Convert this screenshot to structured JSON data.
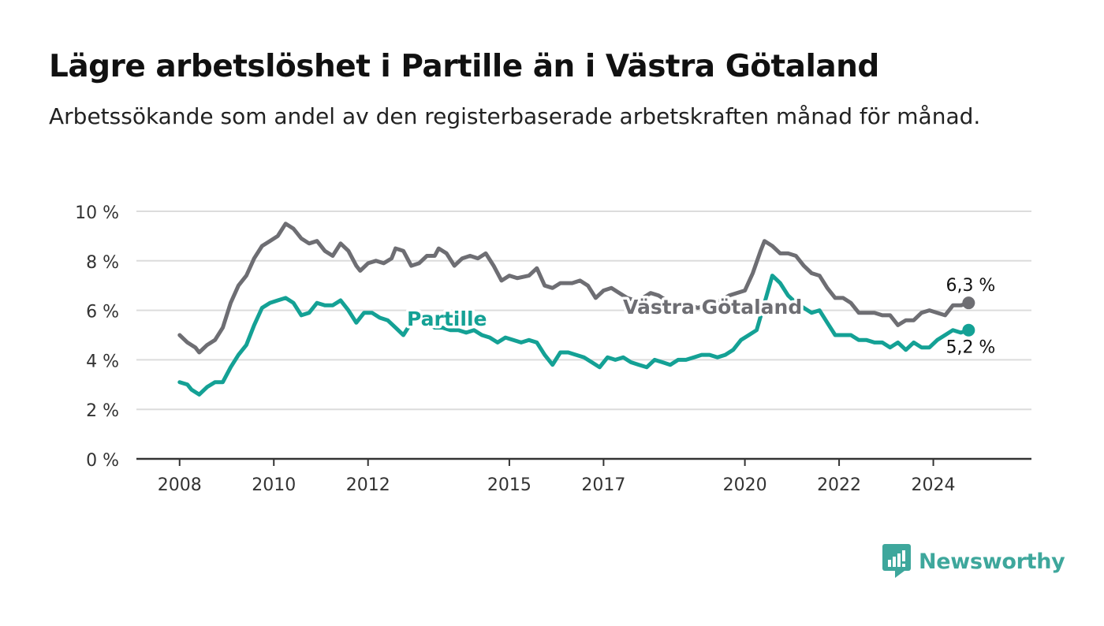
{
  "title": "Lägre arbetslöshet i Partille än i Västra Götaland",
  "subtitle": "Arbetssökande som andel av den registerbaserade arbetskraften månad för månad.",
  "brand": {
    "name": "Newsworthy",
    "color": "#3ea79c",
    "icon": "bar-chart-speech-bubble-icon"
  },
  "chart_data": {
    "type": "line",
    "title": "Lägre arbetslöshet i Partille än i Västra Götaland",
    "subtitle": "Arbetssökande som andel av den registerbaserade arbetskraften månad för månad.",
    "xlabel": "",
    "ylabel": "",
    "ylim": [
      0,
      10
    ],
    "xlim": [
      "2007-02",
      "2026-02"
    ],
    "y_ticks": [
      "0 %",
      "2 %",
      "4 %",
      "6 %",
      "8 %",
      "10 %"
    ],
    "x_ticks": [
      "2008",
      "2010",
      "2012",
      "2015",
      "2017",
      "2020",
      "2022",
      "2024"
    ],
    "x_tick_dates": [
      "2008-01",
      "2010-01",
      "2012-01",
      "2015-01",
      "2017-01",
      "2020-01",
      "2022-01",
      "2024-01"
    ],
    "grid": true,
    "legend": "inline labels",
    "series": [
      {
        "name": "Västra Götaland",
        "color": "#6e6e73",
        "end_label": "6,3 %",
        "points": [
          [
            "2008-01",
            5.0
          ],
          [
            "2008-03",
            4.7
          ],
          [
            "2008-05",
            4.5
          ],
          [
            "2008-06",
            4.3
          ],
          [
            "2008-08",
            4.6
          ],
          [
            "2008-10",
            4.8
          ],
          [
            "2008-12",
            5.3
          ],
          [
            "2009-02",
            6.3
          ],
          [
            "2009-04",
            7.0
          ],
          [
            "2009-06",
            7.4
          ],
          [
            "2009-08",
            8.1
          ],
          [
            "2009-10",
            8.6
          ],
          [
            "2009-12",
            8.8
          ],
          [
            "2010-02",
            9.0
          ],
          [
            "2010-04",
            9.5
          ],
          [
            "2010-06",
            9.3
          ],
          [
            "2010-08",
            8.9
          ],
          [
            "2010-10",
            8.7
          ],
          [
            "2010-12",
            8.8
          ],
          [
            "2011-02",
            8.4
          ],
          [
            "2011-04",
            8.2
          ],
          [
            "2011-06",
            8.7
          ],
          [
            "2011-08",
            8.4
          ],
          [
            "2011-10",
            7.8
          ],
          [
            "2011-11",
            7.6
          ],
          [
            "2012-01",
            7.9
          ],
          [
            "2012-03",
            8.0
          ],
          [
            "2012-05",
            7.9
          ],
          [
            "2012-07",
            8.1
          ],
          [
            "2012-08",
            8.5
          ],
          [
            "2012-10",
            8.4
          ],
          [
            "2012-12",
            7.8
          ],
          [
            "2013-02",
            7.9
          ],
          [
            "2013-04",
            8.2
          ],
          [
            "2013-06",
            8.2
          ],
          [
            "2013-07",
            8.5
          ],
          [
            "2013-09",
            8.3
          ],
          [
            "2013-11",
            7.8
          ],
          [
            "2014-01",
            8.1
          ],
          [
            "2014-03",
            8.2
          ],
          [
            "2014-05",
            8.1
          ],
          [
            "2014-07",
            8.3
          ],
          [
            "2014-09",
            7.8
          ],
          [
            "2014-11",
            7.2
          ],
          [
            "2015-01",
            7.4
          ],
          [
            "2015-03",
            7.3
          ],
          [
            "2015-06",
            7.4
          ],
          [
            "2015-08",
            7.7
          ],
          [
            "2015-10",
            7.0
          ],
          [
            "2015-12",
            6.9
          ],
          [
            "2016-02",
            7.1
          ],
          [
            "2016-05",
            7.1
          ],
          [
            "2016-07",
            7.2
          ],
          [
            "2016-09",
            7.0
          ],
          [
            "2016-11",
            6.5
          ],
          [
            "2017-01",
            6.8
          ],
          [
            "2017-03",
            6.9
          ],
          [
            "2017-05",
            6.7
          ],
          [
            "2017-07",
            6.5
          ],
          [
            "2017-09",
            6.4
          ],
          [
            "2017-11",
            6.5
          ],
          [
            "2018-01",
            6.7
          ],
          [
            "2018-03",
            6.6
          ],
          [
            "2018-05",
            6.4
          ],
          [
            "2018-07",
            6.2
          ],
          [
            "2018-09",
            6.3
          ],
          [
            "2018-11",
            6.2
          ],
          [
            "2019-01",
            6.1
          ],
          [
            "2019-03",
            6.2
          ],
          [
            "2019-05",
            6.3
          ],
          [
            "2019-07",
            6.4
          ],
          [
            "2019-09",
            6.6
          ],
          [
            "2020-01",
            6.8
          ],
          [
            "2020-03",
            7.5
          ],
          [
            "2020-05",
            8.4
          ],
          [
            "2020-06",
            8.8
          ],
          [
            "2020-08",
            8.6
          ],
          [
            "2020-10",
            8.3
          ],
          [
            "2020-12",
            8.3
          ],
          [
            "2021-02",
            8.2
          ],
          [
            "2021-04",
            7.8
          ],
          [
            "2021-06",
            7.5
          ],
          [
            "2021-08",
            7.4
          ],
          [
            "2021-10",
            6.9
          ],
          [
            "2021-12",
            6.5
          ],
          [
            "2022-02",
            6.5
          ],
          [
            "2022-04",
            6.3
          ],
          [
            "2022-06",
            5.9
          ],
          [
            "2022-08",
            5.9
          ],
          [
            "2022-10",
            5.9
          ],
          [
            "2022-12",
            5.8
          ],
          [
            "2023-02",
            5.8
          ],
          [
            "2023-04",
            5.4
          ],
          [
            "2023-06",
            5.6
          ],
          [
            "2023-08",
            5.6
          ],
          [
            "2023-10",
            5.9
          ],
          [
            "2023-12",
            6.0
          ],
          [
            "2024-02",
            5.9
          ],
          [
            "2024-04",
            5.8
          ],
          [
            "2024-06",
            6.2
          ],
          [
            "2024-08",
            6.2
          ],
          [
            "2024-10",
            6.3
          ]
        ]
      },
      {
        "name": "Partille",
        "color": "#14a195",
        "end_label": "5,2 %",
        "points": [
          [
            "2008-01",
            3.1
          ],
          [
            "2008-03",
            3.0
          ],
          [
            "2008-04",
            2.8
          ],
          [
            "2008-06",
            2.6
          ],
          [
            "2008-08",
            2.9
          ],
          [
            "2008-10",
            3.1
          ],
          [
            "2008-12",
            3.1
          ],
          [
            "2009-02",
            3.7
          ],
          [
            "2009-04",
            4.2
          ],
          [
            "2009-06",
            4.6
          ],
          [
            "2009-08",
            5.4
          ],
          [
            "2009-10",
            6.1
          ],
          [
            "2009-12",
            6.3
          ],
          [
            "2010-02",
            6.4
          ],
          [
            "2010-04",
            6.5
          ],
          [
            "2010-06",
            6.3
          ],
          [
            "2010-08",
            5.8
          ],
          [
            "2010-10",
            5.9
          ],
          [
            "2010-12",
            6.3
          ],
          [
            "2011-02",
            6.2
          ],
          [
            "2011-04",
            6.2
          ],
          [
            "2011-06",
            6.4
          ],
          [
            "2011-08",
            6.0
          ],
          [
            "2011-10",
            5.5
          ],
          [
            "2011-12",
            5.9
          ],
          [
            "2012-02",
            5.9
          ],
          [
            "2012-04",
            5.7
          ],
          [
            "2012-06",
            5.6
          ],
          [
            "2012-08",
            5.3
          ],
          [
            "2012-10",
            5.0
          ],
          [
            "2012-12",
            5.5
          ],
          [
            "2013-02",
            5.7
          ],
          [
            "2013-04",
            5.5
          ],
          [
            "2013-06",
            5.3
          ],
          [
            "2013-08",
            5.3
          ],
          [
            "2013-10",
            5.2
          ],
          [
            "2013-12",
            5.2
          ],
          [
            "2014-02",
            5.1
          ],
          [
            "2014-04",
            5.2
          ],
          [
            "2014-06",
            5.0
          ],
          [
            "2014-08",
            4.9
          ],
          [
            "2014-10",
            4.7
          ],
          [
            "2014-12",
            4.9
          ],
          [
            "2015-02",
            4.8
          ],
          [
            "2015-04",
            4.7
          ],
          [
            "2015-06",
            4.8
          ],
          [
            "2015-08",
            4.7
          ],
          [
            "2015-10",
            4.2
          ],
          [
            "2015-12",
            3.8
          ],
          [
            "2016-02",
            4.3
          ],
          [
            "2016-04",
            4.3
          ],
          [
            "2016-06",
            4.2
          ],
          [
            "2016-08",
            4.1
          ],
          [
            "2016-10",
            3.9
          ],
          [
            "2016-12",
            3.7
          ],
          [
            "2017-02",
            4.1
          ],
          [
            "2017-04",
            4.0
          ],
          [
            "2017-06",
            4.1
          ],
          [
            "2017-08",
            3.9
          ],
          [
            "2017-10",
            3.8
          ],
          [
            "2017-12",
            3.7
          ],
          [
            "2018-02",
            4.0
          ],
          [
            "2018-04",
            3.9
          ],
          [
            "2018-06",
            3.8
          ],
          [
            "2018-08",
            4.0
          ],
          [
            "2018-10",
            4.0
          ],
          [
            "2018-12",
            4.1
          ],
          [
            "2019-02",
            4.2
          ],
          [
            "2019-04",
            4.2
          ],
          [
            "2019-06",
            4.1
          ],
          [
            "2019-08",
            4.2
          ],
          [
            "2019-10",
            4.4
          ],
          [
            "2019-12",
            4.8
          ],
          [
            "2020-02",
            5.0
          ],
          [
            "2020-04",
            5.2
          ],
          [
            "2020-06",
            6.3
          ],
          [
            "2020-08",
            7.4
          ],
          [
            "2020-10",
            7.1
          ],
          [
            "2020-12",
            6.6
          ],
          [
            "2021-02",
            6.3
          ],
          [
            "2021-04",
            6.1
          ],
          [
            "2021-06",
            5.9
          ],
          [
            "2021-08",
            6.0
          ],
          [
            "2021-10",
            5.5
          ],
          [
            "2021-12",
            5.0
          ],
          [
            "2022-02",
            5.0
          ],
          [
            "2022-04",
            5.0
          ],
          [
            "2022-06",
            4.8
          ],
          [
            "2022-08",
            4.8
          ],
          [
            "2022-10",
            4.7
          ],
          [
            "2022-12",
            4.7
          ],
          [
            "2023-02",
            4.5
          ],
          [
            "2023-04",
            4.7
          ],
          [
            "2023-06",
            4.4
          ],
          [
            "2023-08",
            4.7
          ],
          [
            "2023-10",
            4.5
          ],
          [
            "2023-12",
            4.5
          ],
          [
            "2024-02",
            4.8
          ],
          [
            "2024-04",
            5.0
          ],
          [
            "2024-06",
            5.2
          ],
          [
            "2024-08",
            5.1
          ],
          [
            "2024-10",
            5.2
          ]
        ]
      }
    ]
  }
}
